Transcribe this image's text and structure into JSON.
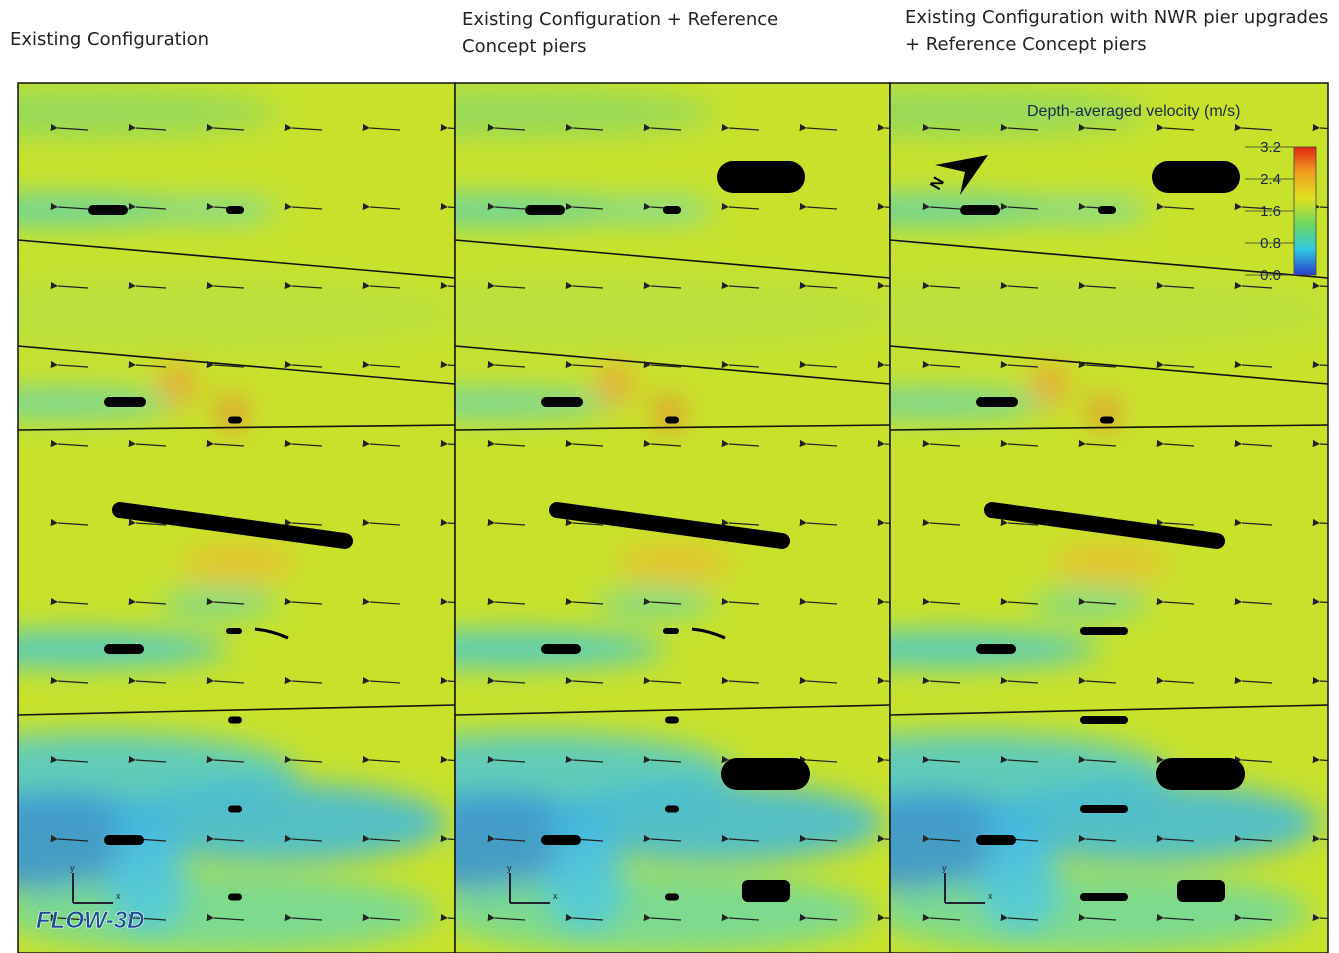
{
  "panels": [
    {
      "title": "Existing Configuration"
    },
    {
      "title": "Existing Configuration + Reference Concept piers"
    },
    {
      "title": "Existing Configuration with NWR pier upgrades + Reference Concept piers"
    }
  ],
  "colorbar": {
    "title": "Depth-averaged velocity (m/s)",
    "ticks": [
      3.2,
      2.4,
      1.6,
      0.8,
      {
        "value": 0,
        "label": "0.0"
      }
    ]
  },
  "compass": "N",
  "axes": {
    "x": "x",
    "y": "y"
  },
  "logo": "FLOW-3D"
}
